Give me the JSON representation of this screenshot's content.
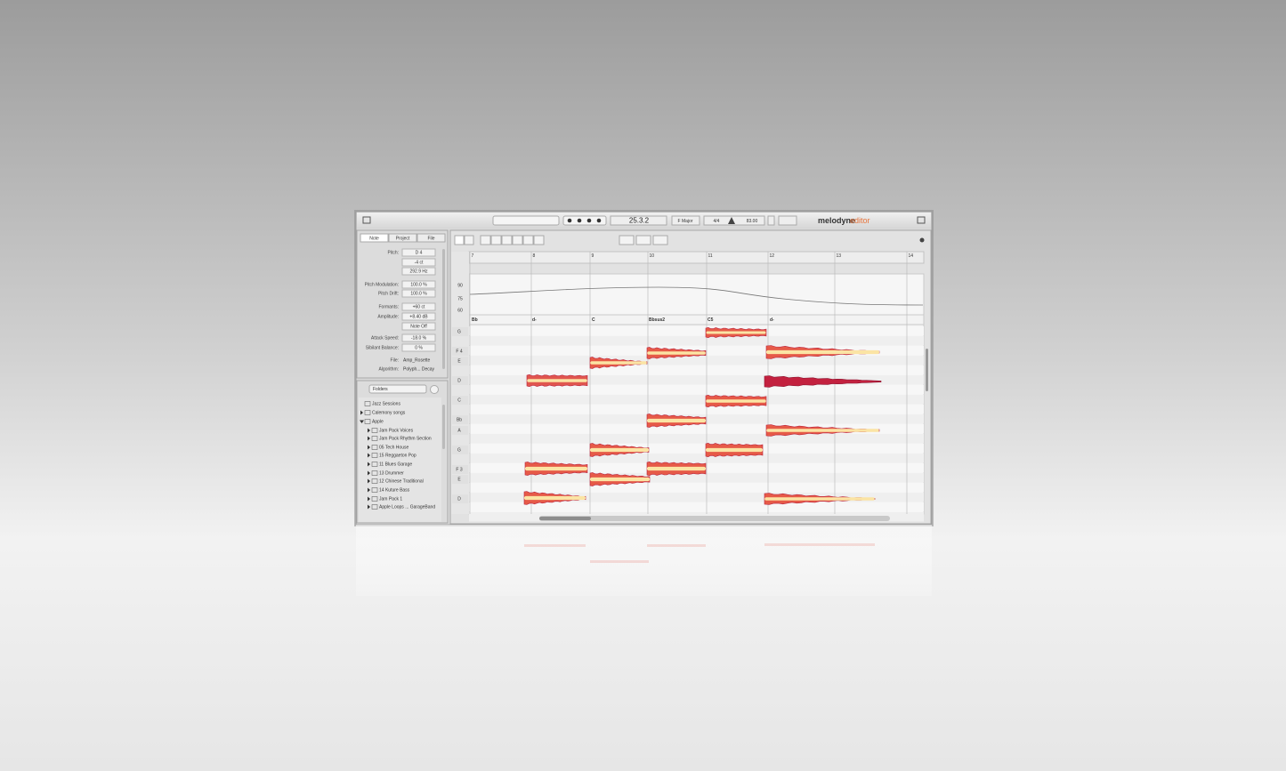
{
  "toolbar": {
    "position": "25.3.2",
    "key": "F Major",
    "meter": "4/4",
    "tempo": "83.00",
    "brand": "melodyne",
    "edition": "editor"
  },
  "inspector": {
    "tabs": [
      "Note",
      "Project",
      "File"
    ],
    "fields": [
      {
        "label": "Pitch:",
        "values": [
          "D 4",
          "-4 ct",
          "292.9 Hz"
        ]
      },
      {
        "label": "Pitch Modulation:",
        "values": [
          "100.0 %"
        ]
      },
      {
        "label": "Pitch Drift:",
        "values": [
          "100.0 %"
        ]
      },
      {
        "label": "Formants:",
        "values": [
          "+60 ct"
        ]
      },
      {
        "label": "Amplitude:",
        "values": [
          "+8.40 dB"
        ]
      },
      {
        "values": [
          "Note Off"
        ]
      },
      {
        "label": "Attack Speed:",
        "values": [
          "-18.0 %"
        ]
      },
      {
        "label": "Sibilant Balance:",
        "values": [
          "0 %"
        ]
      },
      {
        "label": "File:",
        "values": [
          "Amp_Rosette"
        ]
      },
      {
        "label": "Algorithm:",
        "values": [
          "Polyph... Decay"
        ]
      }
    ]
  },
  "browser": {
    "selector": "Folders",
    "items": [
      "Jazz Sessions",
      "Calemony songs",
      "Apple",
      "Jam Pack Voices",
      "Jam Pack Rhythm Section",
      "05 Tech House",
      "15 Reggaeton Pop",
      "11 Blues Garage",
      "13 Drummer",
      "12 Chinese Traditional",
      "14 Kuture Bass",
      "Jam Pack 1",
      "Apple Loops ... GarageBand"
    ]
  },
  "editor": {
    "bars": [
      7,
      8,
      9,
      10,
      11,
      12,
      13,
      14
    ],
    "tempo_ticks": [
      90,
      75,
      60
    ],
    "chords": [
      "Bb",
      "d-",
      "C",
      "Bbsus2",
      "C5",
      "d-"
    ],
    "pitches": [
      "G",
      "F 4",
      "E",
      "D",
      "C",
      "Bb",
      "A",
      "G",
      "F 3",
      "E",
      "D"
    ]
  }
}
